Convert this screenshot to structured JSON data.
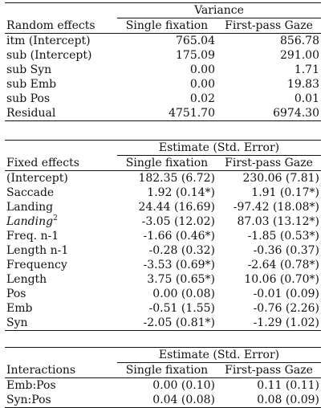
{
  "random": {
    "group_header": "Variance",
    "col_label": "Random effects",
    "col1": "Single fixation",
    "col2": "First-pass Gaze",
    "rows": [
      {
        "label": "itm (Intercept)",
        "v1": "765.04",
        "v2": "856.78"
      },
      {
        "label": "sub (Intercept)",
        "v1": "175.09",
        "v2": "291.00"
      },
      {
        "label": "sub Syn",
        "v1": "0.00",
        "v2": "1.71"
      },
      {
        "label": "sub Emb",
        "v1": "0.00",
        "v2": "19.83"
      },
      {
        "label": "sub Pos",
        "v1": "0.02",
        "v2": "0.01"
      },
      {
        "label": "Residual",
        "v1": "4751.70",
        "v2": "6974.30"
      }
    ]
  },
  "fixed": {
    "group_header": "Estimate (Std. Error)",
    "col_label": "Fixed effects",
    "col1": "Single fixation",
    "col2": "First-pass Gaze",
    "rows": [
      {
        "label": "(Intercept)",
        "v1": "182.35 (6.72)",
        "v2": "230.06 (7.81)"
      },
      {
        "label": "Saccade",
        "v1": "1.92 (0.14*)",
        "v2": "1.91 (0.17*)"
      },
      {
        "label": "Landing",
        "v1": "24.44 (16.69)",
        "v2": "-97.42 (18.08*)"
      },
      {
        "label": "Landing",
        "label_sup": "2",
        "v1": "-3.05 (12.02)",
        "v2": "87.03 (13.12*)"
      },
      {
        "label": "Freq. n-1",
        "v1": "-1.66 (0.46*)",
        "v2": "-1.85 (0.53*)"
      },
      {
        "label": "Length n-1",
        "v1": "-0.28 (0.32)",
        "v2": "-0.36 (0.37)"
      },
      {
        "label": "Frequency",
        "v1": "-3.53 (0.69*)",
        "v2": "-2.64 (0.78*)"
      },
      {
        "label": "Length",
        "v1": "3.75 (0.65*)",
        "v2": "10.06 (0.70*)"
      },
      {
        "label": "Pos",
        "v1": "0.00 (0.08)",
        "v2": "-0.01 (0.09)"
      },
      {
        "label": "Emb",
        "v1": "-0.51 (1.55)",
        "v2": "-0.76 (2.26)"
      },
      {
        "label": "Syn",
        "v1": "-2.05 (0.81*)",
        "v2": "-1.29 (1.02)"
      }
    ]
  },
  "interactions": {
    "group_header": "Estimate (Std. Error)",
    "col_label": "Interactions",
    "col1": "Single fixation",
    "col2": "First-pass Gaze",
    "rows": [
      {
        "label": "Emb:Pos",
        "v1": "0.00 (0.10)",
        "v2": "0.11 (0.11)"
      },
      {
        "label": "Syn:Pos",
        "v1": "0.04 (0.08)",
        "v2": "0.08 (0.09)"
      }
    ]
  }
}
